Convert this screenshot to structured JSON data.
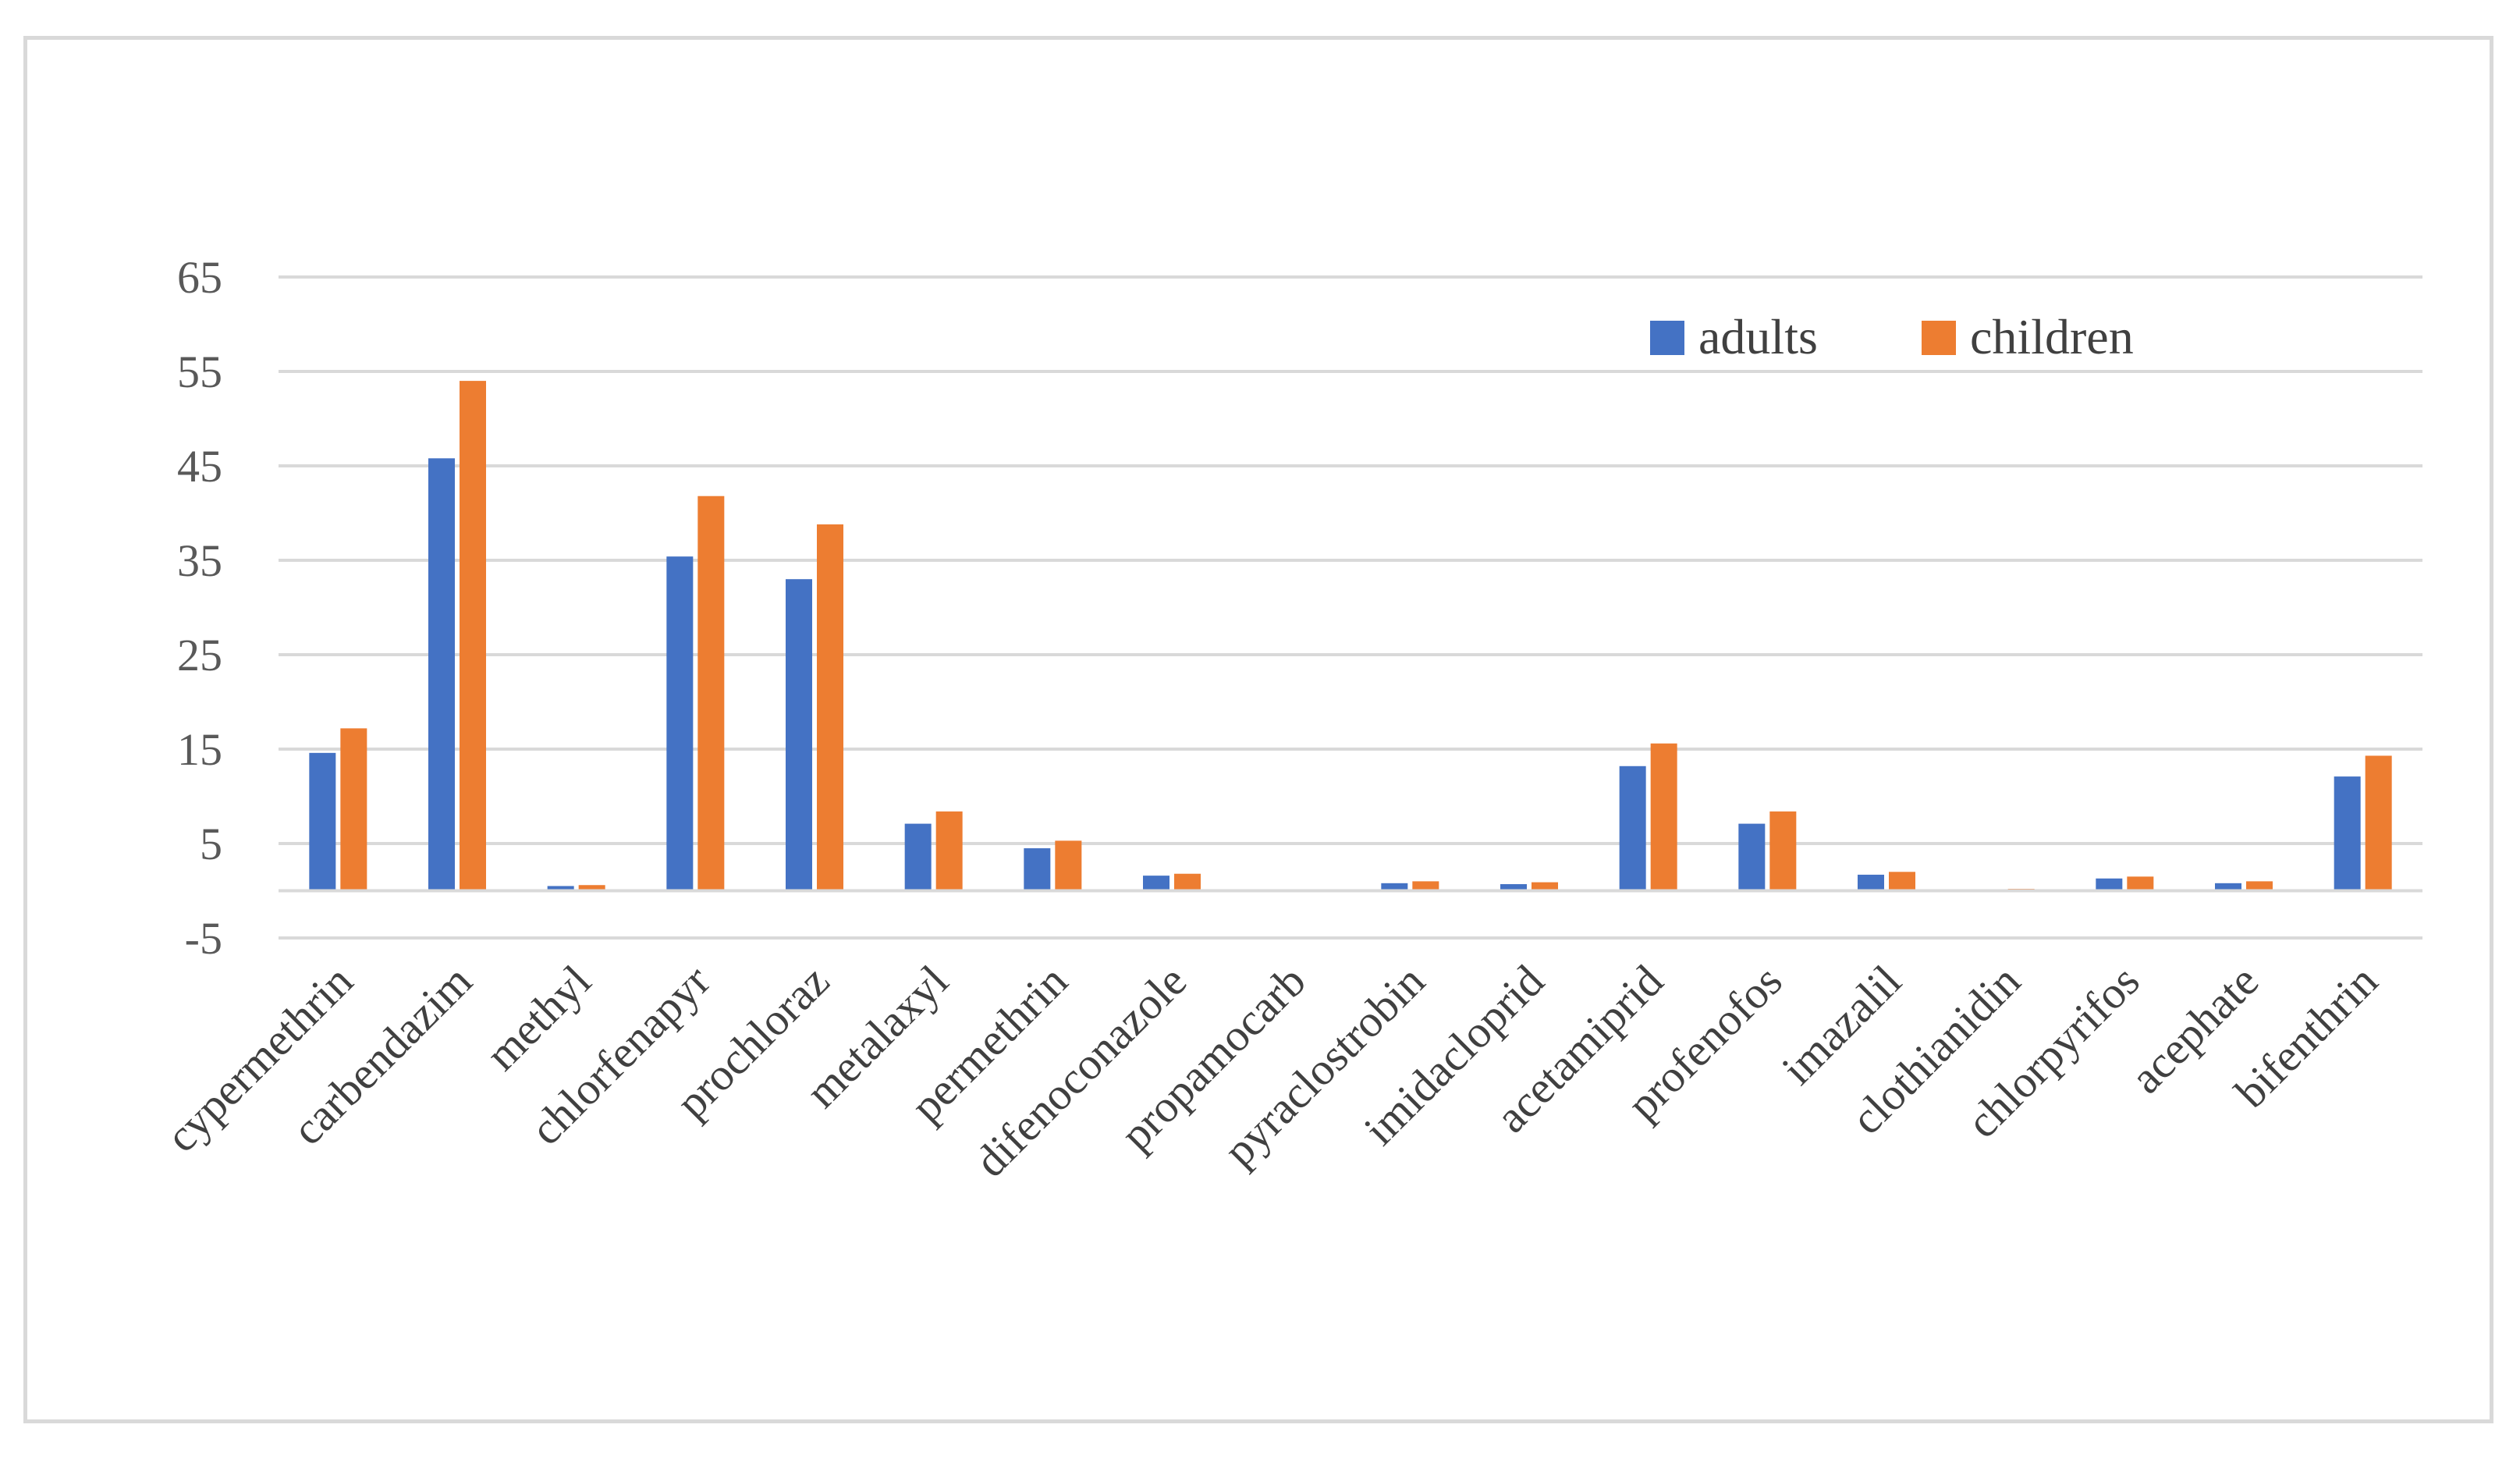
{
  "chart_data": {
    "type": "bar",
    "title": "",
    "xlabel": "",
    "ylabel": "",
    "ylim": [
      -5,
      65
    ],
    "yticks": [
      65,
      55,
      45,
      35,
      25,
      15,
      5,
      -5
    ],
    "grid": true,
    "legend_position": "top-right",
    "categories": [
      "cypermethrin",
      "carbendazim",
      "methyl",
      "chlorfenapyr",
      "prochloraz",
      "metalaxyl",
      "permethrin",
      "difenoconazole",
      "propamocarb",
      "pyraclostrobin",
      "imidacloprid",
      "acetamiprid",
      "profenofos",
      "imazalil",
      "clothianidin",
      "chlorpyrifos",
      "acephate",
      "bifenthrin"
    ],
    "series": [
      {
        "name": "adults",
        "color": "#4472c4",
        "values": [
          14.6,
          45.8,
          0.5,
          35.4,
          33.0,
          7.1,
          4.5,
          1.6,
          0.05,
          0.8,
          0.7,
          13.2,
          7.1,
          1.7,
          0.15,
          1.3,
          0.8,
          12.1
        ]
      },
      {
        "name": "children",
        "color": "#ed7d31",
        "values": [
          17.2,
          54.0,
          0.6,
          41.8,
          38.8,
          8.4,
          5.3,
          1.8,
          0.05,
          1.0,
          0.9,
          15.6,
          8.4,
          2.0,
          0.2,
          1.5,
          1.0,
          14.3
        ]
      }
    ]
  }
}
